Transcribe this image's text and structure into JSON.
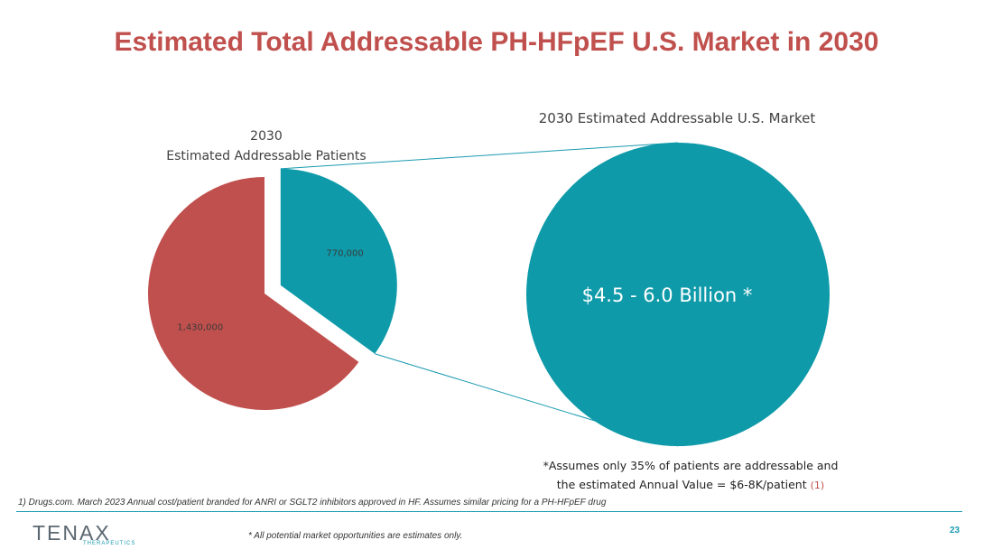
{
  "page": {
    "title": "Estimated Total Addressable PH-HFpEF U.S. Market in 2030",
    "page_number": "23"
  },
  "chart_data": [
    {
      "type": "pie",
      "title_line1": "2030",
      "title_line2": "Estimated Addressable Patients",
      "slices": [
        {
          "label": "770,000",
          "value": 770000,
          "color": "#0e9aa9",
          "exploded": true
        },
        {
          "label": "1,430,000",
          "value": 1430000,
          "color": "#c0504d",
          "exploded": false
        }
      ]
    },
    {
      "type": "bubble",
      "title": "2030 Estimated  Addressable U.S. Market",
      "label": "$4.5 - 6.0 Billion *",
      "color": "#0e9aa9"
    }
  ],
  "notes": {
    "assumption_line1": "*Assumes only 35% of patients are addressable and",
    "assumption_line2": "the estimated Annual Value = $6-8K/patient",
    "assumption_ref": "(1)",
    "source": "1)   Drugs.com. March 2023  Annual cost/patient branded for ANRI or SGLT2 inhibitors approved in HF. Assumes similar pricing for a PH-HFpEF drug",
    "disclaimer": "*  All potential market opportunities are estimates only."
  },
  "logo": {
    "word": "TENAX",
    "sub": "THERAPEUTICS"
  }
}
